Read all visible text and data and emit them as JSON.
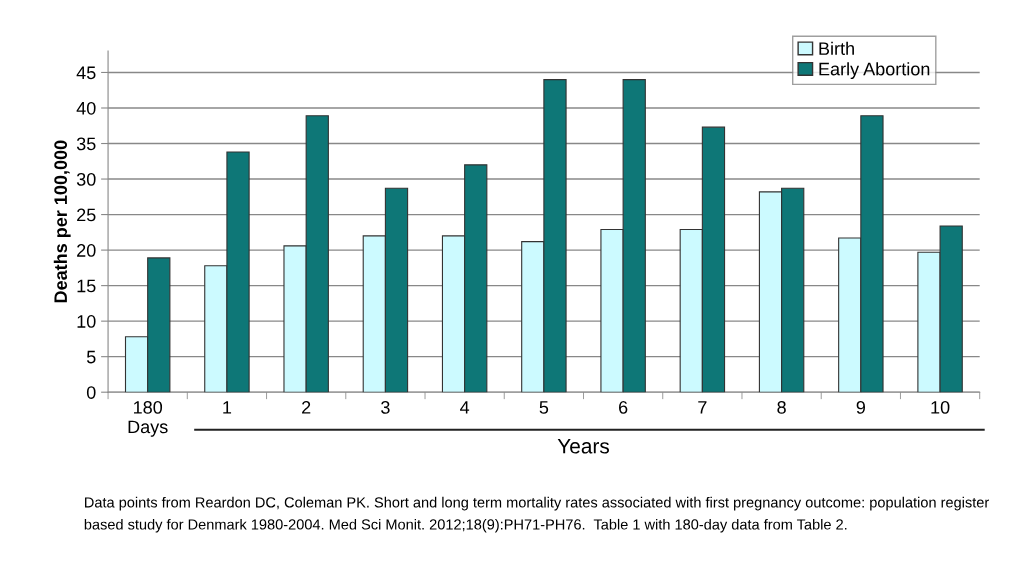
{
  "chart_data": {
    "type": "bar",
    "categories": [
      "180\nDays",
      "1",
      "2",
      "3",
      "4",
      "5",
      "6",
      "7",
      "8",
      "9",
      "10"
    ],
    "series": [
      {
        "name": "Birth",
        "color": "#ccfaff",
        "values": [
          7.8,
          17.8,
          20.6,
          22.0,
          22.0,
          21.2,
          22.9,
          22.9,
          28.2,
          21.7,
          19.7
        ]
      },
      {
        "name": "Early Abortion",
        "color": "#0e7777",
        "values": [
          18.9,
          33.8,
          38.9,
          28.7,
          32.0,
          44.0,
          44.0,
          37.3,
          28.7,
          38.9,
          23.4
        ]
      }
    ],
    "xlabel": "Years",
    "ylabel": "Deaths per 100,000",
    "ylim": [
      0,
      48
    ],
    "yticks": [
      0,
      5,
      10,
      15,
      20,
      25,
      30,
      35,
      40,
      45
    ],
    "grid": "y",
    "legend": "top right",
    "annotations": [
      "Data points from Reardon DC, Coleman PK. Short and long term mortality rates associated with first pregnancy outcome: population register based study for Denmark 1980-2004. Med Sci Monit. 2012;18(9):PH71-PH76.  Table 1 with 180-day data from Table 2."
    ]
  }
}
